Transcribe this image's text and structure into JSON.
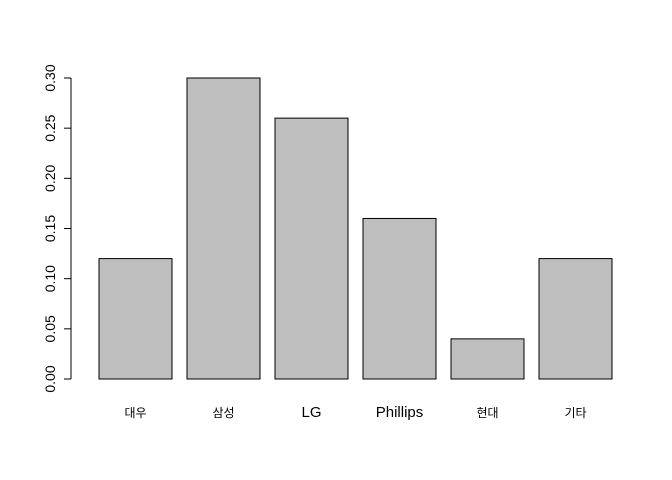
{
  "chart_data": {
    "type": "bar",
    "categories": [
      "대우",
      "삼성",
      "LG",
      "Phillips",
      "현대",
      "기타"
    ],
    "values": [
      0.12,
      0.3,
      0.26,
      0.16,
      0.04,
      0.12
    ],
    "yticks": [
      "0.00",
      "0.05",
      "0.10",
      "0.15",
      "0.20",
      "0.25",
      "0.30"
    ],
    "ylim": [
      0,
      0.3
    ],
    "title": "",
    "xlabel": "",
    "ylabel": "",
    "grid": false,
    "bar_color": "#bebebe",
    "edge_color": "#000000"
  }
}
